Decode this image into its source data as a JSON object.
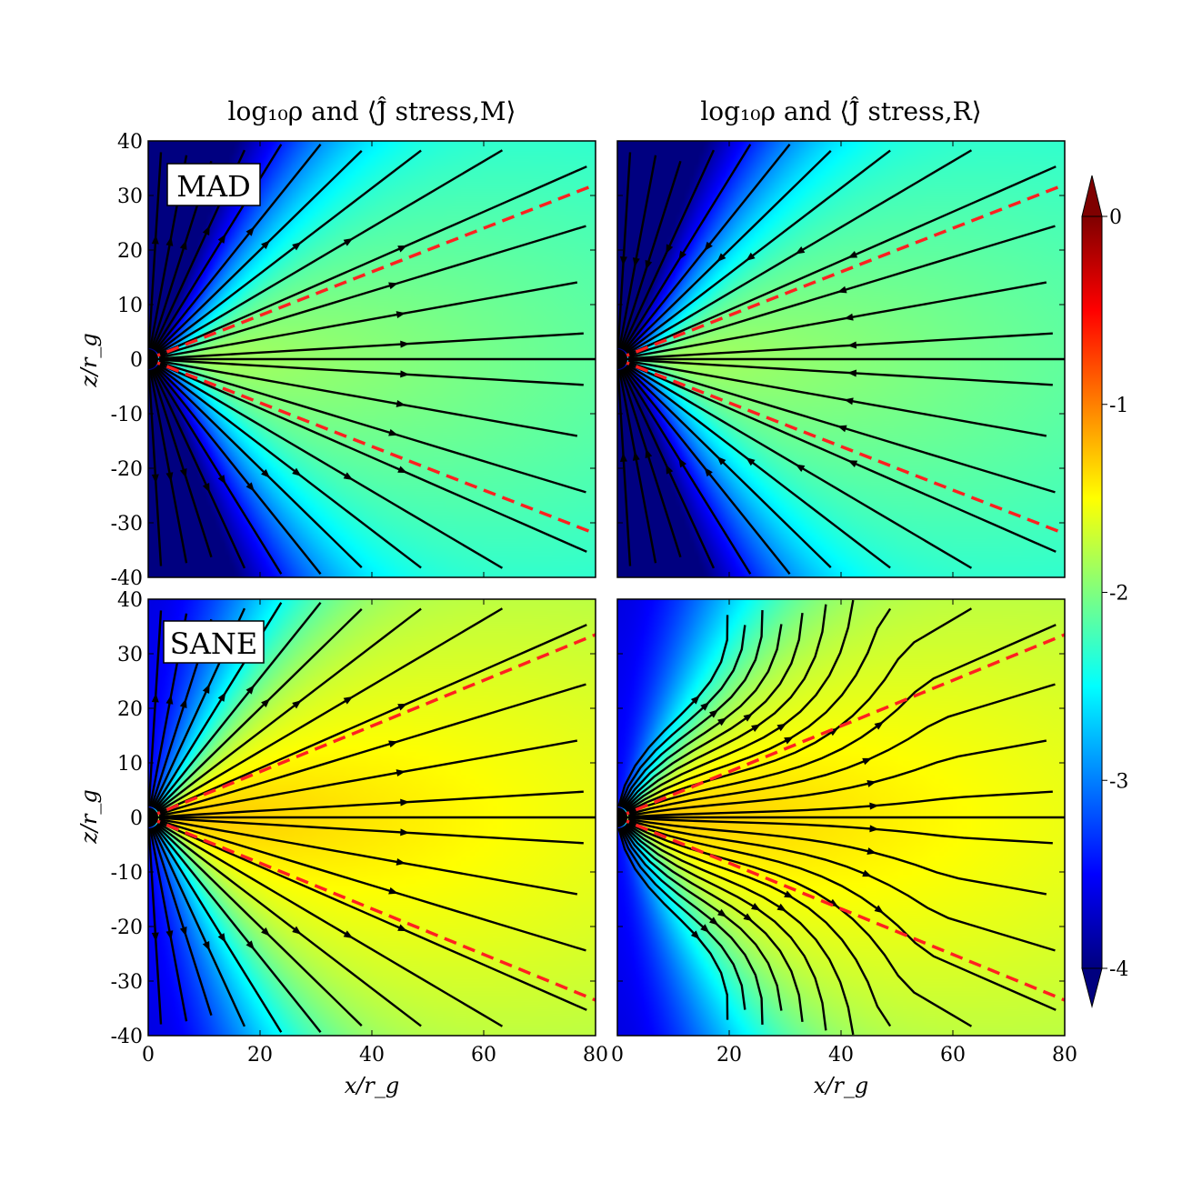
{
  "figure": {
    "col_titles": [
      "log₁₀ρ and ⟨Ĵ̂ stress,M⟩",
      "log₁₀ρ and ⟨Ĵ̂ stress,R⟩"
    ],
    "row_tags": [
      "MAD",
      "SANE"
    ],
    "xlabel": "x/r_g",
    "ylabel": "z/r_g",
    "x_ticks": [
      "0",
      "20",
      "40",
      "60",
      "80"
    ],
    "y_ticks": [
      "40",
      "30",
      "20",
      "10",
      "0",
      "-10",
      "-20",
      "-30",
      "-40"
    ],
    "colorbar": {
      "ticks": [
        "0",
        "-1",
        "-2",
        "-3",
        "-4"
      ],
      "range": [
        -4,
        0
      ],
      "colormap": "jet",
      "colors": [
        "#00007f",
        "#0000ff",
        "#007fff",
        "#00ffff",
        "#7fff7f",
        "#ffff00",
        "#ff7f00",
        "#ff0000",
        "#7f0000"
      ]
    },
    "guide_line_color": "#ff2020"
  },
  "chart_data": [
    {
      "type": "heatmap",
      "panel": "MAD, stress M",
      "title": "log₁₀ρ and ⟨Ĵ̂ stress,M⟩",
      "xlim": [
        0,
        80
      ],
      "ylim": [
        -40,
        40
      ],
      "density": {
        "equator": -1.8,
        "polar": -4.0,
        "core_width": 22,
        "polar_open_width": 6
      },
      "streamlines": "outward radial from origin",
      "dashed_lines": [
        {
          "x": [
            0,
            80
          ],
          "y": [
            0,
            32
          ]
        },
        {
          "x": [
            0,
            80
          ],
          "y": [
            0,
            -32
          ]
        }
      ]
    },
    {
      "type": "heatmap",
      "panel": "MAD, stress R",
      "title": "log₁₀ρ and ⟨Ĵ̂ stress,R⟩",
      "xlim": [
        0,
        80
      ],
      "ylim": [
        -40,
        40
      ],
      "density": {
        "equator": -1.8,
        "polar": -4.0,
        "core_width": 22,
        "polar_open_width": 6
      },
      "streamlines": "inward radial toward origin",
      "dashed_lines": [
        {
          "x": [
            0,
            80
          ],
          "y": [
            0,
            32
          ]
        },
        {
          "x": [
            0,
            80
          ],
          "y": [
            0,
            -32
          ]
        }
      ]
    },
    {
      "type": "heatmap",
      "panel": "SANE, stress M",
      "xlim": [
        0,
        80
      ],
      "ylim": [
        -40,
        40
      ],
      "density": {
        "equator": -1.25,
        "polar": -2.9,
        "core_width": 30,
        "polar_open_width": 3
      },
      "streamlines": "outward radial from origin",
      "dashed_lines": [
        {
          "x": [
            0,
            80
          ],
          "y": [
            0,
            33.5
          ]
        },
        {
          "x": [
            0,
            80
          ],
          "y": [
            0,
            -33.5
          ]
        }
      ]
    },
    {
      "type": "heatmap",
      "panel": "SANE, stress R",
      "xlim": [
        0,
        80
      ],
      "ylim": [
        -40,
        40
      ],
      "density": {
        "equator": -1.25,
        "polar": -2.9,
        "core_width": 30,
        "polar_open_width": 3
      },
      "streamlines": "mixed, converging toward equator",
      "dashed_lines": [
        {
          "x": [
            0,
            80
          ],
          "y": [
            0,
            33.5
          ]
        },
        {
          "x": [
            0,
            80
          ],
          "y": [
            0,
            -33.5
          ]
        }
      ]
    }
  ]
}
